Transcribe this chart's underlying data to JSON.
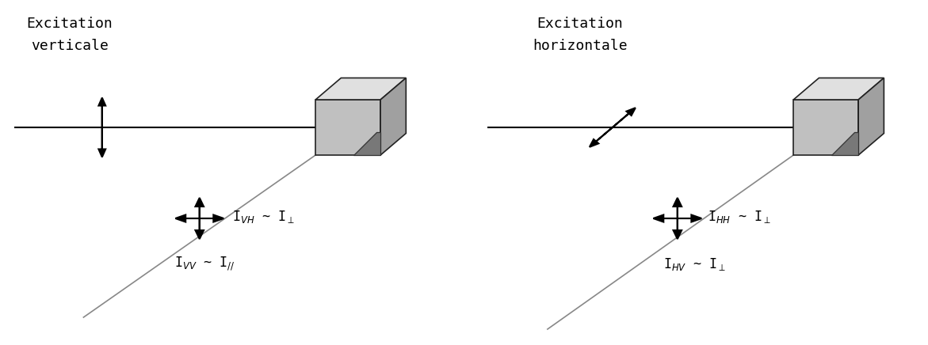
{
  "bg_color": "#ffffff",
  "text_color": "#000000",
  "line_color": "#000000",
  "diag_color": "#888888",
  "title1_line1": "Excitation",
  "title1_line2": "verticale",
  "title2_line1": "Excitation",
  "title2_line2": "horizontale",
  "label1_top": "I$_{VH}$ ~ I$_{\\perp}$",
  "label1_bot": "I$_{VV}$ ~ I$_{//}$",
  "label2_top": "I$_{HH}$ ~ I$_{\\perp}$",
  "label2_bot": "I$_{HV}$ ~ I$_{\\perp}$"
}
